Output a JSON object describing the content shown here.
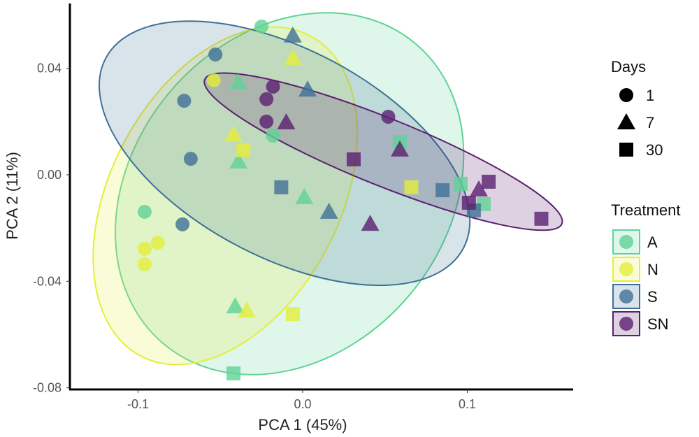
{
  "chart_data": {
    "type": "scatter",
    "xlabel": "PCA 1 (45%)",
    "ylabel": "PCA 2 (11%)",
    "xlim": [
      -0.142,
      0.163
    ],
    "ylim": [
      -0.081,
      0.066
    ],
    "xticks": [
      {
        "v": -0.1,
        "label": "-0.1"
      },
      {
        "v": 0.0,
        "label": "0.0"
      },
      {
        "v": 0.1,
        "label": "0.1"
      }
    ],
    "yticks": [
      {
        "v": 0.04,
        "label": "0.04"
      },
      {
        "v": 0.0,
        "label": "0.00"
      },
      {
        "v": -0.04,
        "label": "-0.04"
      },
      {
        "v": -0.08,
        "label": "-0.08"
      }
    ],
    "grid": false,
    "legend_days": {
      "title": "Days",
      "entries": [
        {
          "label": "1",
          "shape": "circle"
        },
        {
          "label": "7",
          "shape": "triangle"
        },
        {
          "label": "30",
          "shape": "square"
        }
      ]
    },
    "legend_treatment": {
      "title": "Treatment",
      "position": "right"
    },
    "series": [
      {
        "name": "A",
        "color": "#5fd396",
        "ellipse": {
          "cx": -0.008,
          "cy": -0.0071,
          "a": 0.119,
          "b": 0.059,
          "angle_deg": -50
        },
        "points": [
          {
            "x": -0.025,
            "y": 0.0557,
            "day": 1
          },
          {
            "x": -0.018,
            "y": 0.0147,
            "day": 1
          },
          {
            "x": -0.096,
            "y": -0.0139,
            "day": 1
          },
          {
            "x": -0.039,
            "y": 0.0347,
            "day": 7
          },
          {
            "x": -0.039,
            "y": 0.005,
            "day": 7
          },
          {
            "x": 0.001,
            "y": -0.0084,
            "day": 7
          },
          {
            "x": -0.041,
            "y": -0.0494,
            "day": 7
          },
          {
            "x": 0.059,
            "y": 0.0123,
            "day": 30
          },
          {
            "x": 0.096,
            "y": -0.0034,
            "day": 30
          },
          {
            "x": 0.11,
            "y": -0.011,
            "day": 30
          },
          {
            "x": -0.042,
            "y": -0.0746,
            "day": 30
          }
        ]
      },
      {
        "name": "N",
        "color": "#e4ee3a",
        "ellipse": {
          "cx": -0.047,
          "cy": -0.0079,
          "a": 0.11,
          "b": 0.043,
          "angle_deg": -62
        },
        "points": [
          {
            "x": -0.054,
            "y": 0.0355,
            "day": 1
          },
          {
            "x": -0.096,
            "y": -0.0278,
            "day": 1
          },
          {
            "x": -0.088,
            "y": -0.0255,
            "day": 1
          },
          {
            "x": -0.096,
            "y": -0.0336,
            "day": 1
          },
          {
            "x": -0.006,
            "y": 0.0439,
            "day": 7
          },
          {
            "x": -0.042,
            "y": 0.0152,
            "day": 7
          },
          {
            "x": -0.034,
            "y": -0.051,
            "day": 7
          },
          {
            "x": -0.036,
            "y": 0.0092,
            "day": 30
          },
          {
            "x": 0.066,
            "y": -0.0047,
            "day": 30
          },
          {
            "x": -0.006,
            "y": -0.0523,
            "day": 30
          }
        ]
      },
      {
        "name": "S",
        "color": "#3f7196",
        "ellipse": {
          "cx": -0.011,
          "cy": 0.0081,
          "a": 0.123,
          "b": 0.039,
          "angle_deg": 28
        },
        "points": [
          {
            "x": -0.053,
            "y": 0.0452,
            "day": 1
          },
          {
            "x": -0.072,
            "y": 0.0278,
            "day": 1
          },
          {
            "x": -0.068,
            "y": 0.006,
            "day": 1
          },
          {
            "x": -0.073,
            "y": -0.0186,
            "day": 1
          },
          {
            "x": -0.006,
            "y": 0.0523,
            "day": 7
          },
          {
            "x": 0.003,
            "y": 0.032,
            "day": 7
          },
          {
            "x": 0.016,
            "y": -0.0139,
            "day": 7
          },
          {
            "x": -0.013,
            "y": -0.0047,
            "day": 30
          },
          {
            "x": 0.085,
            "y": -0.0058,
            "day": 30
          },
          {
            "x": 0.104,
            "y": -0.0134,
            "day": 30
          }
        ]
      },
      {
        "name": "SN",
        "color": "#5a1f70",
        "ellipse": {
          "cx": 0.049,
          "cy": 0.0087,
          "a": 0.117,
          "b": 0.0126,
          "angle_deg": 22
        },
        "points": [
          {
            "x": -0.018,
            "y": 0.0331,
            "day": 1
          },
          {
            "x": -0.022,
            "y": 0.0284,
            "day": 1
          },
          {
            "x": -0.022,
            "y": 0.02,
            "day": 1
          },
          {
            "x": 0.052,
            "y": 0.0218,
            "day": 1
          },
          {
            "x": -0.01,
            "y": 0.0197,
            "day": 7
          },
          {
            "x": 0.059,
            "y": 0.0095,
            "day": 7
          },
          {
            "x": 0.107,
            "y": -0.0055,
            "day": 7
          },
          {
            "x": 0.041,
            "y": -0.0184,
            "day": 7
          },
          {
            "x": 0.031,
            "y": 0.0058,
            "day": 30
          },
          {
            "x": 0.113,
            "y": -0.0026,
            "day": 30
          },
          {
            "x": 0.101,
            "y": -0.0105,
            "day": 30
          },
          {
            "x": 0.145,
            "y": -0.0165,
            "day": 30
          }
        ]
      }
    ]
  }
}
